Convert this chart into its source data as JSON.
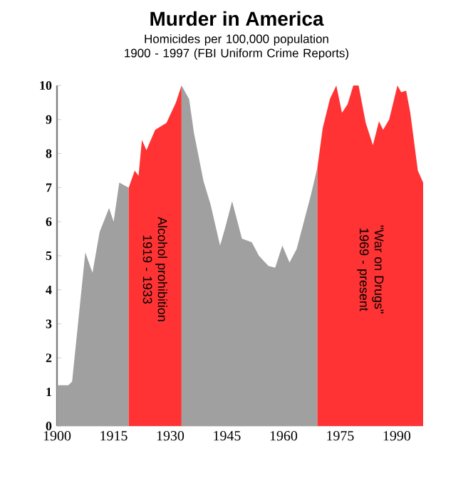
{
  "chart_data": {
    "type": "area",
    "title": "Murder in America",
    "subtitle": "Homicides per 100,000 population 1900 - 1997 (FBI Uniform Crime Reports)",
    "series": [
      {
        "color": "#a0a0a0",
        "x": [
          1900,
          1903,
          1904,
          1907.5,
          1909.4,
          1911.3,
          1913.8,
          1915,
          1916.5,
          1919
        ],
        "values": [
          1.2,
          1.2,
          1.3,
          5.1,
          4.5,
          5.7,
          6.4,
          6.0,
          7.15,
          7.0
        ]
      },
      {
        "color": "#ff3333",
        "x": [
          1919,
          1920.6,
          1921.6,
          1922.5,
          1923.7,
          1926,
          1929,
          1931.5,
          1933
        ],
        "values": [
          7.0,
          7.5,
          7.35,
          8.4,
          8.1,
          8.7,
          8.9,
          9.5,
          10.0
        ]
      },
      {
        "color": "#a0a0a0",
        "x": [
          1933,
          1935,
          1936.3,
          1938.8,
          1940.7,
          1943.2,
          1944.5,
          1946.4,
          1949,
          1951.6,
          1953.5,
          1956,
          1957.8,
          1959.7,
          1961.6,
          1963.5,
          1965.4,
          1967.3,
          1969
        ],
        "values": [
          10.0,
          9.6,
          8.6,
          7.2,
          6.5,
          5.3,
          5.8,
          6.6,
          5.5,
          5.4,
          5.0,
          4.7,
          4.65,
          5.3,
          4.8,
          5.2,
          6.0,
          6.8,
          7.6
        ]
      },
      {
        "color": "#ff3333",
        "x": [
          1969,
          1970.4,
          1972.3,
          1974,
          1975.5,
          1977,
          1978.5,
          1979.9,
          1981.8,
          1983.7,
          1985.3,
          1986.4,
          1988,
          1990.2,
          1991.2,
          1992.5,
          1993.6,
          1995.6,
          1997
        ],
        "values": [
          7.6,
          8.75,
          9.6,
          10.0,
          9.2,
          9.45,
          10.0,
          10.0,
          8.9,
          8.25,
          8.95,
          8.7,
          9.0,
          10.0,
          9.8,
          9.85,
          9.2,
          7.5,
          7.15
        ]
      }
    ],
    "xlim": [
      1900,
      1997
    ],
    "ylim": [
      0,
      10
    ],
    "xticks": [
      1900,
      1915,
      1930,
      1945,
      1960,
      1975,
      1990
    ],
    "yticks": [
      0,
      1,
      2,
      3,
      4,
      5,
      6,
      7,
      8,
      9,
      10
    ],
    "annotations": [
      "Alcohol prohibition 1919 - 1933",
      "\"War on Drugs\" 1969 - present"
    ]
  }
}
